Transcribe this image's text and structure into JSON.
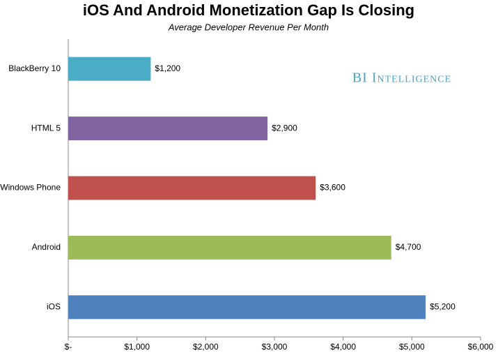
{
  "chart_data": {
    "type": "barh",
    "title": "iOS And Android Monetization Gap Is Closing",
    "subtitle": "Average Developer Revenue Per Month",
    "watermark": "BI Intelligence",
    "categories": [
      "BlackBerry 10",
      "HTML 5",
      "Windows Phone",
      "Android",
      "iOS"
    ],
    "values": [
      1200,
      2900,
      3600,
      4700,
      5200
    ],
    "value_labels": [
      "$1,200",
      "$2,900",
      "$3,600",
      "$4,700",
      "$5,200"
    ],
    "colors": [
      "#4bacc6",
      "#8064a2",
      "#c0504d",
      "#9bbb59",
      "#4f81bd"
    ],
    "xlim": [
      0,
      6000
    ],
    "xticks": [
      {
        "value": 0,
        "label": "$-"
      },
      {
        "value": 1000,
        "label": "$1,000"
      },
      {
        "value": 2000,
        "label": "$2,000"
      },
      {
        "value": 3000,
        "label": "$3,000"
      },
      {
        "value": 4000,
        "label": "$4,000"
      },
      {
        "value": 5000,
        "label": "$5,000"
      },
      {
        "value": 6000,
        "label": "$6,000"
      }
    ],
    "grid": false
  }
}
